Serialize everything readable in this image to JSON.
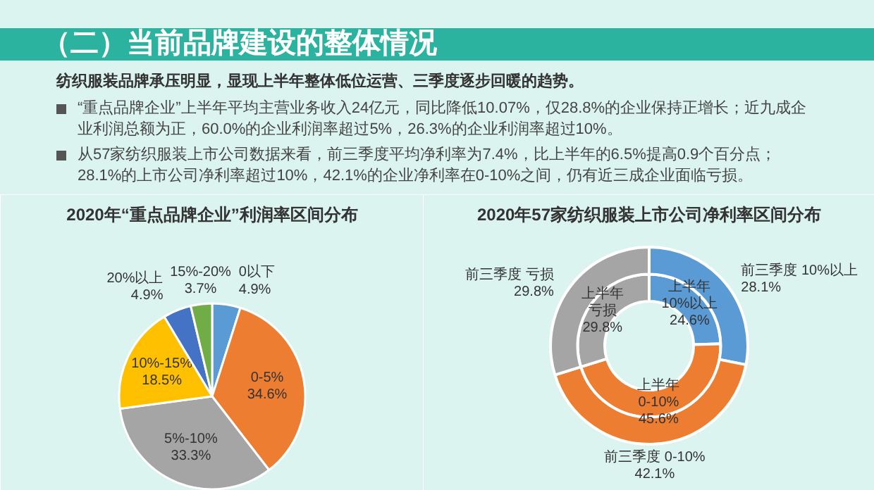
{
  "chart_data": [
    {
      "type": "other",
      "title": "（二）当前品牌建设的整体情况",
      "annotations": [
        "纺织服装品牌承压明显，显现上半年整体低位运营、三季度逐步回暖的趋势。",
        "“重点品牌企业”上半年平均主营业务收入24亿元，同比降低10.07%，仅28.8%的企业保持正增长；近九成企业利润总额为正，60.0%的企业利润率超过5%，26.3%的企业利润率超过10%。",
        "从57家纺织服装上市公司数据来看，前三季度平均净利率为7.4%，比上半年的6.5%提高0.9个百分点；28.1%的上市公司净利率超过10%，42.1%的企业净利率在0-10%之间，仍有近三成企业面临亏损。"
      ]
    },
    {
      "type": "pie",
      "title": "2020年“重点品牌企业”利润率区间分布",
      "categories": [
        "0以下",
        "0-5%",
        "5%-10%",
        "10%-15%",
        "20%以上",
        "15%-20%"
      ],
      "values": [
        4.9,
        34.6,
        33.3,
        18.5,
        4.9,
        3.7
      ],
      "colors": [
        "#5b9bd5",
        "#ed7d31",
        "#a5a5a5",
        "#ffc000",
        "#4472c4",
        "#70ad47"
      ],
      "value_labels": [
        "4.9%",
        "34.6%",
        "33.3%",
        "18.5%",
        "4.9%",
        "3.7%"
      ]
    },
    {
      "type": "donut",
      "title": "2020年57家纺织服装上市公司净利率区间分布",
      "categories": [
        "10%以上",
        "0-10%",
        "亏损"
      ],
      "colors": [
        "#5b9bd5",
        "#ed7d31",
        "#a5a5a5"
      ],
      "series": [
        {
          "name": "上半年",
          "values": [
            24.6,
            45.6,
            29.8
          ],
          "value_labels": [
            "24.6%",
            "45.6%",
            "29.8%"
          ]
        },
        {
          "name": "前三季度",
          "values": [
            28.1,
            42.1,
            29.8
          ],
          "value_labels": [
            "28.1%",
            "42.1%",
            "29.8%"
          ]
        }
      ]
    }
  ]
}
